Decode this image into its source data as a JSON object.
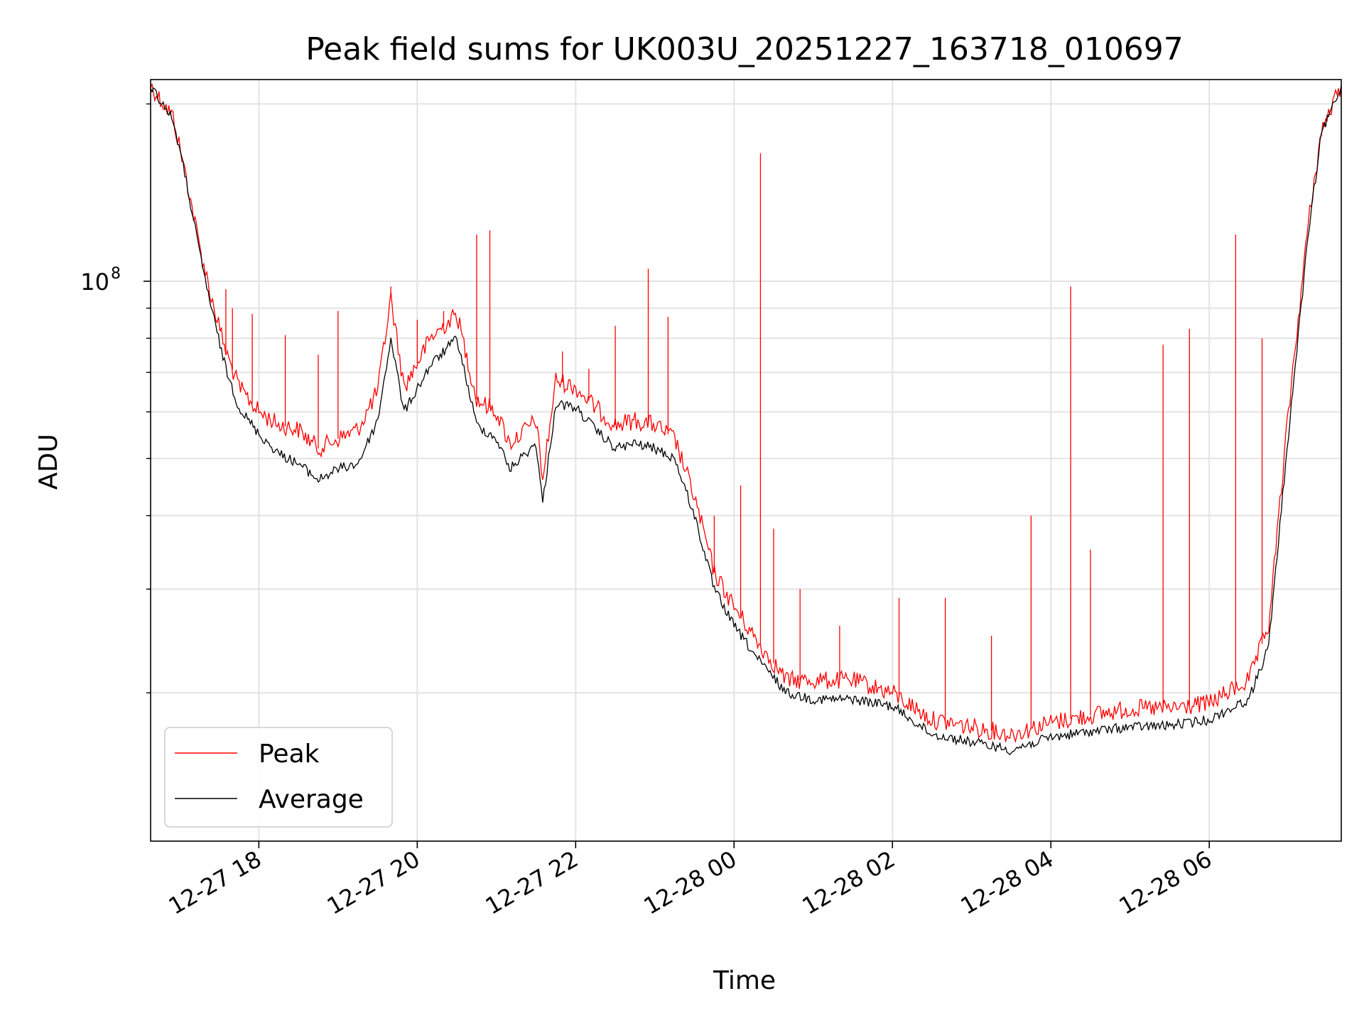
{
  "chart_data": {
    "type": "line",
    "title": "Peak field sums for UK003U_20251227_163718_010697",
    "xlabel": "Time",
    "ylabel": "ADU",
    "yscale": "log",
    "xlim": [
      "2025-12-27 16:38",
      "2025-12-28 07:40"
    ],
    "ylim": [
      11200000,
      220000000
    ],
    "x_ticks": [
      {
        "time": "2025-12-27 18:00",
        "label": "12-27 18"
      },
      {
        "time": "2025-12-27 20:00",
        "label": "12-27 20"
      },
      {
        "time": "2025-12-27 22:00",
        "label": "12-27 22"
      },
      {
        "time": "2025-12-28 00:00",
        "label": "12-28 00"
      },
      {
        "time": "2025-12-28 02:00",
        "label": "12-28 02"
      },
      {
        "time": "2025-12-28 04:00",
        "label": "12-28 04"
      },
      {
        "time": "2025-12-28 06:00",
        "label": "12-28 06"
      }
    ],
    "y_major_ticks": [
      {
        "value": 100000000,
        "label": "10",
        "exponent": "8"
      }
    ],
    "y_minor_gridlines": [
      20000000,
      30000000,
      40000000,
      50000000,
      60000000,
      70000000,
      80000000,
      90000000,
      200000000
    ],
    "grid": true,
    "legend_position": "lower-left",
    "series": [
      {
        "name": "Peak",
        "color": "#ff0000",
        "points": [
          [
            "2025-12-27 16:38",
            215000000
          ],
          [
            "2025-12-27 16:55",
            190000000
          ],
          [
            "2025-12-27 17:05",
            150000000
          ],
          [
            "2025-12-27 17:15",
            115000000
          ],
          [
            "2025-12-27 17:25",
            92000000
          ],
          [
            "2025-12-27 17:35",
            76000000
          ],
          [
            "2025-12-27 17:45",
            66000000
          ],
          [
            "2025-12-27 18:00",
            60000000
          ],
          [
            "2025-12-27 18:15",
            57000000
          ],
          [
            "2025-12-27 18:30",
            56000000
          ],
          [
            "2025-12-27 18:45",
            52000000
          ],
          [
            "2025-12-27 19:00",
            54000000
          ],
          [
            "2025-12-27 19:15",
            56000000
          ],
          [
            "2025-12-27 19:30",
            65000000
          ],
          [
            "2025-12-27 19:40",
            94000000
          ],
          [
            "2025-12-27 19:50",
            66000000
          ],
          [
            "2025-12-27 20:10",
            80000000
          ],
          [
            "2025-12-27 20:30",
            88000000
          ],
          [
            "2025-12-27 20:45",
            63000000
          ],
          [
            "2025-12-27 21:00",
            60000000
          ],
          [
            "2025-12-27 21:10",
            53000000
          ],
          [
            "2025-12-27 21:30",
            58000000
          ],
          [
            "2025-12-27 21:35",
            46000000
          ],
          [
            "2025-12-27 21:45",
            68000000
          ],
          [
            "2025-12-27 22:00",
            66000000
          ],
          [
            "2025-12-27 22:15",
            61000000
          ],
          [
            "2025-12-27 22:30",
            57000000
          ],
          [
            "2025-12-27 22:45",
            58000000
          ],
          [
            "2025-12-27 23:00",
            57000000
          ],
          [
            "2025-12-27 23:15",
            54000000
          ],
          [
            "2025-12-27 23:30",
            43000000
          ],
          [
            "2025-12-27 23:45",
            32000000
          ],
          [
            "2025-12-28 00:00",
            28000000
          ],
          [
            "2025-12-28 00:20",
            24000000
          ],
          [
            "2025-12-28 00:40",
            21000000
          ],
          [
            "2025-12-28 01:00",
            21000000
          ],
          [
            "2025-12-28 01:30",
            21000000
          ],
          [
            "2025-12-28 02:00",
            20000000
          ],
          [
            "2025-12-28 02:30",
            18000000
          ],
          [
            "2025-12-28 03:00",
            17500000
          ],
          [
            "2025-12-28 03:30",
            17000000
          ],
          [
            "2025-12-28 04:00",
            17800000
          ],
          [
            "2025-12-28 04:30",
            18300000
          ],
          [
            "2025-12-28 05:00",
            18800000
          ],
          [
            "2025-12-28 05:30",
            18800000
          ],
          [
            "2025-12-28 06:00",
            19200000
          ],
          [
            "2025-12-28 06:30",
            21000000
          ],
          [
            "2025-12-28 06:45",
            26000000
          ],
          [
            "2025-12-28 07:00",
            60000000
          ],
          [
            "2025-12-28 07:15",
            125000000
          ],
          [
            "2025-12-28 07:25",
            180000000
          ],
          [
            "2025-12-28 07:40",
            215000000
          ]
        ],
        "spikes": [
          [
            "2025-12-27 17:35",
            97000000
          ],
          [
            "2025-12-27 17:40",
            90000000
          ],
          [
            "2025-12-27 17:55",
            88000000
          ],
          [
            "2025-12-27 18:20",
            81000000
          ],
          [
            "2025-12-27 18:45",
            75000000
          ],
          [
            "2025-12-27 19:00",
            89000000
          ],
          [
            "2025-12-27 19:40",
            98000000
          ],
          [
            "2025-12-27 20:00",
            86000000
          ],
          [
            "2025-12-27 20:20",
            89000000
          ],
          [
            "2025-12-27 20:45",
            120000000
          ],
          [
            "2025-12-27 20:55",
            122000000
          ],
          [
            "2025-12-27 21:50",
            76000000
          ],
          [
            "2025-12-27 22:10",
            71000000
          ],
          [
            "2025-12-27 22:30",
            84000000
          ],
          [
            "2025-12-27 22:55",
            105000000
          ],
          [
            "2025-12-27 23:10",
            87000000
          ],
          [
            "2025-12-27 23:45",
            40000000
          ],
          [
            "2025-12-28 00:05",
            45000000
          ],
          [
            "2025-12-28 00:20",
            165000000
          ],
          [
            "2025-12-28 00:30",
            38000000
          ],
          [
            "2025-12-28 00:50",
            30000000
          ],
          [
            "2025-12-28 01:20",
            26000000
          ],
          [
            "2025-12-28 02:05",
            29000000
          ],
          [
            "2025-12-28 02:40",
            29000000
          ],
          [
            "2025-12-28 03:15",
            25000000
          ],
          [
            "2025-12-28 03:45",
            40000000
          ],
          [
            "2025-12-28 04:15",
            98000000
          ],
          [
            "2025-12-28 04:30",
            35000000
          ],
          [
            "2025-12-28 05:25",
            78000000
          ],
          [
            "2025-12-28 05:45",
            83000000
          ],
          [
            "2025-12-28 06:20",
            120000000
          ],
          [
            "2025-12-28 06:40",
            80000000
          ]
        ]
      },
      {
        "name": "Average",
        "color": "#000000",
        "points": [
          [
            "2025-12-27 16:38",
            215000000
          ],
          [
            "2025-12-27 16:55",
            188000000
          ],
          [
            "2025-12-27 17:05",
            148000000
          ],
          [
            "2025-12-27 17:15",
            112000000
          ],
          [
            "2025-12-27 17:25",
            88000000
          ],
          [
            "2025-12-27 17:35",
            71000000
          ],
          [
            "2025-12-27 17:45",
            61000000
          ],
          [
            "2025-12-27 18:00",
            55000000
          ],
          [
            "2025-12-27 18:15",
            51000000
          ],
          [
            "2025-12-27 18:30",
            49000000
          ],
          [
            "2025-12-27 18:45",
            46000000
          ],
          [
            "2025-12-27 19:00",
            48000000
          ],
          [
            "2025-12-27 19:15",
            49000000
          ],
          [
            "2025-12-27 19:30",
            58000000
          ],
          [
            "2025-12-27 19:40",
            80000000
          ],
          [
            "2025-12-27 19:50",
            60000000
          ],
          [
            "2025-12-27 20:10",
            72000000
          ],
          [
            "2025-12-27 20:30",
            80000000
          ],
          [
            "2025-12-27 20:45",
            57000000
          ],
          [
            "2025-12-27 21:00",
            54000000
          ],
          [
            "2025-12-27 21:10",
            48000000
          ],
          [
            "2025-12-27 21:30",
            53000000
          ],
          [
            "2025-12-27 21:35",
            42000000
          ],
          [
            "2025-12-27 21:45",
            62000000
          ],
          [
            "2025-12-27 22:00",
            61000000
          ],
          [
            "2025-12-27 22:15",
            56000000
          ],
          [
            "2025-12-27 22:30",
            52000000
          ],
          [
            "2025-12-27 22:45",
            53000000
          ],
          [
            "2025-12-27 23:00",
            52000000
          ],
          [
            "2025-12-27 23:15",
            50000000
          ],
          [
            "2025-12-27 23:30",
            40000000
          ],
          [
            "2025-12-27 23:45",
            30000000
          ],
          [
            "2025-12-28 00:00",
            26000000
          ],
          [
            "2025-12-28 00:20",
            22500000
          ],
          [
            "2025-12-28 00:40",
            20000000
          ],
          [
            "2025-12-28 01:00",
            19500000
          ],
          [
            "2025-12-28 01:30",
            19500000
          ],
          [
            "2025-12-28 02:00",
            19000000
          ],
          [
            "2025-12-28 02:30",
            17000000
          ],
          [
            "2025-12-28 03:00",
            16500000
          ],
          [
            "2025-12-28 03:30",
            16000000
          ],
          [
            "2025-12-28 04:00",
            16800000
          ],
          [
            "2025-12-28 04:30",
            17200000
          ],
          [
            "2025-12-28 05:00",
            17500000
          ],
          [
            "2025-12-28 05:30",
            17600000
          ],
          [
            "2025-12-28 06:00",
            18000000
          ],
          [
            "2025-12-28 06:30",
            19500000
          ],
          [
            "2025-12-28 06:45",
            24000000
          ],
          [
            "2025-12-28 07:00",
            55000000
          ],
          [
            "2025-12-28 07:15",
            120000000
          ],
          [
            "2025-12-28 07:25",
            178000000
          ],
          [
            "2025-12-28 07:40",
            215000000
          ]
        ]
      }
    ]
  }
}
